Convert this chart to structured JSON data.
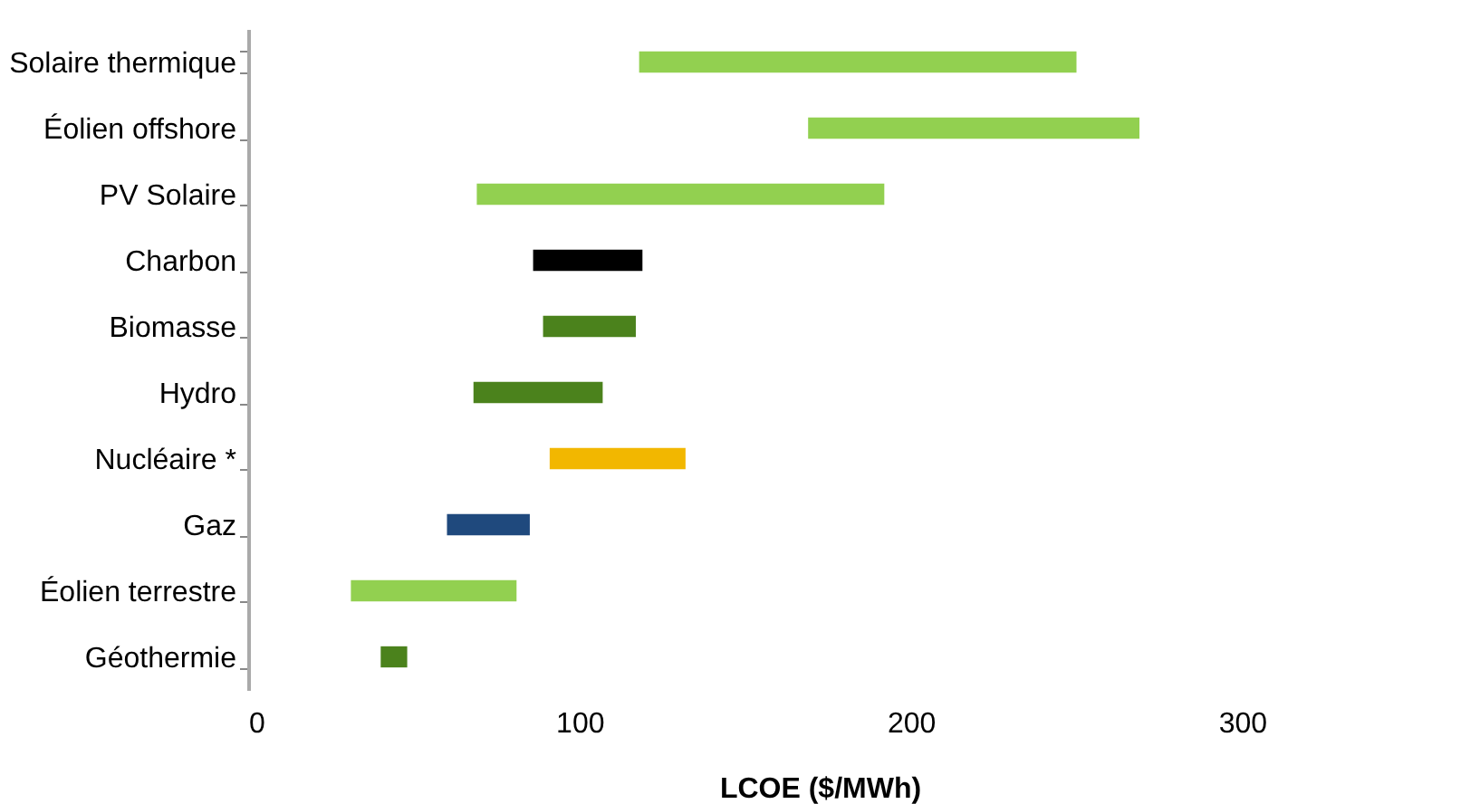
{
  "chart_data": {
    "type": "bar",
    "orientation": "horizontal",
    "xlabel": "LCOE ($/MWh)",
    "categories": [
      "Solaire thermique",
      "Éolien offshore",
      "PV Solaire ",
      "Charbon",
      "Biomasse",
      "Hydro",
      "Nucléaire *",
      "Gaz",
      "Éolien terrestre",
      "Géothermie"
    ],
    "base": [
      118,
      169,
      69,
      86,
      89,
      68,
      91,
      60,
      31,
      40
    ],
    "values": [
      132,
      100,
      123,
      33,
      28,
      39,
      41,
      25,
      50,
      8
    ],
    "colors": [
      "#92d050",
      "#92d050",
      "#92d050",
      "#000000",
      "#4b821c",
      "#4b821c",
      "#f2b700",
      "#1f497d",
      "#92d050",
      "#4b821c"
    ],
    "xlim": [
      0,
      345
    ],
    "xticks": [
      0,
      100,
      200,
      300
    ],
    "grid": false
  }
}
